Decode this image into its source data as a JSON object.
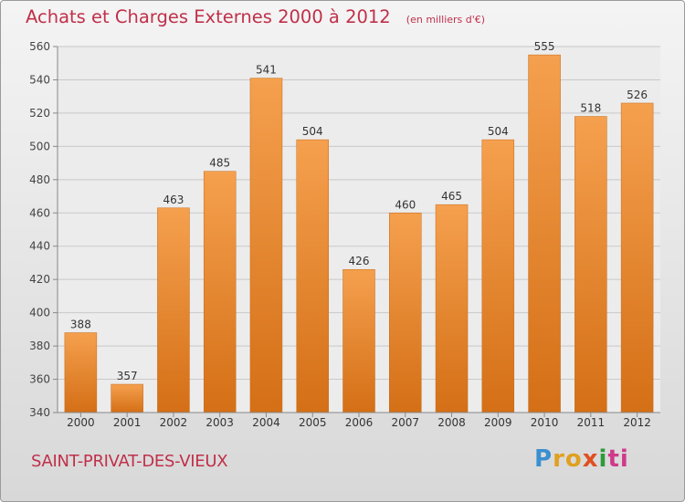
{
  "chart_data": {
    "type": "bar",
    "title": "Achats et Charges Externes 2000 à 2012",
    "unit": "(en milliers d'€)",
    "categories": [
      "2000",
      "2001",
      "2002",
      "2003",
      "2004",
      "2005",
      "2006",
      "2007",
      "2008",
      "2009",
      "2010",
      "2011",
      "2012"
    ],
    "values": [
      388,
      357,
      463,
      485,
      541,
      504,
      426,
      460,
      465,
      504,
      555,
      518,
      526
    ],
    "ylim": [
      340,
      560
    ],
    "yticks": [
      340,
      360,
      380,
      400,
      420,
      440,
      460,
      480,
      500,
      520,
      540,
      560
    ],
    "grid": true,
    "bar_color": "#f0903a"
  },
  "commune": "SAINT-PRIVAT-DES-VIEUX",
  "brand": {
    "parts": [
      "P",
      "ro",
      "x",
      "i",
      "ti"
    ]
  }
}
